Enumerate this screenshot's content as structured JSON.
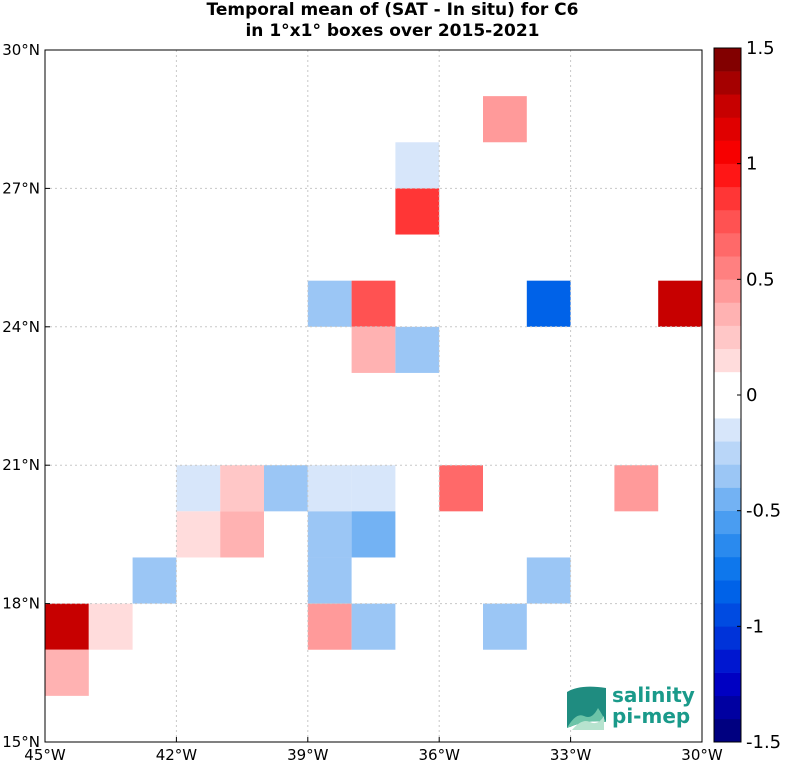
{
  "chart_data": {
    "type": "heatmap",
    "title_line1": "Temporal mean of (SAT - In situ) for C6",
    "title_line2": "in 1°x1° boxes over 2015-2021",
    "x_ticks": [
      {
        "value": -45,
        "label": "45°W"
      },
      {
        "value": -42,
        "label": "42°W"
      },
      {
        "value": -39,
        "label": "39°W"
      },
      {
        "value": -36,
        "label": "36°W"
      },
      {
        "value": -33,
        "label": "33°W"
      },
      {
        "value": -30,
        "label": "30°W"
      }
    ],
    "y_ticks": [
      {
        "value": 15,
        "label": "15°N"
      },
      {
        "value": 18,
        "label": "18°N"
      },
      {
        "value": 21,
        "label": "21°N"
      },
      {
        "value": 24,
        "label": "24°N"
      },
      {
        "value": 27,
        "label": "27°N"
      },
      {
        "value": 30,
        "label": "30°N"
      }
    ],
    "xlim": [
      -45,
      -30
    ],
    "ylim": [
      15,
      30
    ],
    "grid": true,
    "cells": [
      {
        "lon": -35,
        "lat": 28,
        "value": 0.4
      },
      {
        "lon": -37,
        "lat": 27,
        "value": -0.15
      },
      {
        "lon": -37,
        "lat": 26,
        "value": 0.8
      },
      {
        "lon": -39,
        "lat": 24,
        "value": -0.3
      },
      {
        "lon": -38,
        "lat": 24,
        "value": 0.7
      },
      {
        "lon": -34,
        "lat": 24,
        "value": -0.8
      },
      {
        "lon": -31,
        "lat": 24,
        "value": 1.3
      },
      {
        "lon": -38,
        "lat": 23,
        "value": 0.3
      },
      {
        "lon": -37,
        "lat": 23,
        "value": -0.3
      },
      {
        "lon": -42,
        "lat": 20,
        "value": -0.15
      },
      {
        "lon": -41,
        "lat": 20,
        "value": 0.2
      },
      {
        "lon": -40,
        "lat": 20,
        "value": -0.35
      },
      {
        "lon": -39,
        "lat": 20,
        "value": -0.15
      },
      {
        "lon": -38,
        "lat": 20,
        "value": -0.15
      },
      {
        "lon": -36,
        "lat": 20,
        "value": 0.6
      },
      {
        "lon": -32,
        "lat": 20,
        "value": 0.4
      },
      {
        "lon": -42,
        "lat": 19,
        "value": 0.15
      },
      {
        "lon": -41,
        "lat": 19,
        "value": 0.3
      },
      {
        "lon": -39,
        "lat": 19,
        "value": -0.35
      },
      {
        "lon": -38,
        "lat": 19,
        "value": -0.5
      },
      {
        "lon": -43,
        "lat": 18,
        "value": -0.35
      },
      {
        "lon": -39,
        "lat": 18,
        "value": -0.35
      },
      {
        "lon": -34,
        "lat": 18,
        "value": -0.3
      },
      {
        "lon": -45,
        "lat": 17,
        "value": 1.2
      },
      {
        "lon": -44,
        "lat": 17,
        "value": 0.15
      },
      {
        "lon": -39,
        "lat": 17,
        "value": 0.45
      },
      {
        "lon": -38,
        "lat": 17,
        "value": -0.3
      },
      {
        "lon": -35,
        "lat": 17,
        "value": -0.3
      },
      {
        "lon": -45,
        "lat": 16,
        "value": 0.3
      }
    ],
    "colorbar": {
      "min": -1.5,
      "max": 1.5,
      "tick_values": [
        1.5,
        1,
        0.5,
        0,
        -0.5,
        -1,
        -1.5
      ],
      "tick_labels": [
        "1.5",
        "1",
        "0.5",
        "0",
        "-0.5",
        "-1",
        "-1.5"
      ]
    }
  },
  "logo": {
    "line1": "salinity",
    "line2": "pi-mep"
  },
  "colors": {
    "logo_text": "#1a9a8a",
    "grid": "#c8c8c8"
  }
}
